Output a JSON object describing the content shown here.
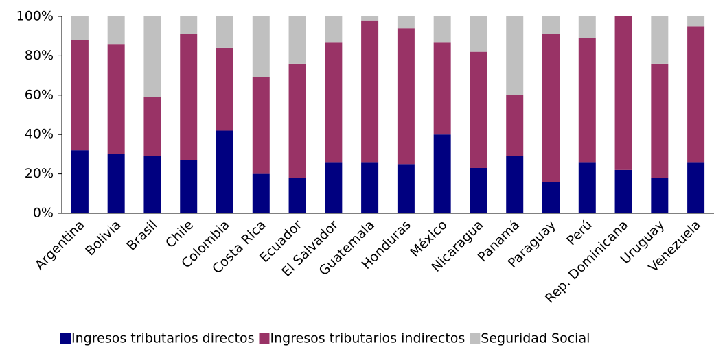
{
  "chart_data": {
    "type": "bar",
    "stacked": true,
    "categories": [
      "Argentina",
      "Bolivia",
      "Brasil",
      "Chile",
      "Colombia",
      "Costa Rica",
      "Ecuador",
      "El Salvador",
      "Guatemala",
      "Honduras",
      "México",
      "Nicaragua",
      "Panamá",
      "Paraguay",
      "Perú",
      "Rep. Dominicana",
      "Uruguay",
      "Venezuela"
    ],
    "series": [
      {
        "name": "Ingresos tributarios directos",
        "color": "#000080",
        "values": [
          32,
          30,
          29,
          27,
          42,
          20,
          18,
          26,
          26,
          25,
          40,
          23,
          29,
          16,
          26,
          22,
          18,
          26
        ]
      },
      {
        "name": "Ingresos tributarios indirectos",
        "color": "#993366",
        "values": [
          56,
          56,
          30,
          64,
          42,
          49,
          58,
          61,
          72,
          69,
          47,
          59,
          31,
          75,
          63,
          78,
          58,
          69
        ]
      },
      {
        "name": "Seguridad Social",
        "color": "#c0c0c0",
        "values": [
          12,
          14,
          41,
          9,
          16,
          31,
          24,
          13,
          2,
          6,
          13,
          18,
          40,
          9,
          11,
          0,
          24,
          5
        ]
      }
    ],
    "ylim": [
      0,
      100
    ],
    "yticks": [
      {
        "value": 0,
        "label": "0%"
      },
      {
        "value": 20,
        "label": "20%"
      },
      {
        "value": 40,
        "label": "40%"
      },
      {
        "value": 60,
        "label": "60%"
      },
      {
        "value": 80,
        "label": "80%"
      },
      {
        "value": 100,
        "label": "100%"
      }
    ],
    "legend": "bottom"
  }
}
